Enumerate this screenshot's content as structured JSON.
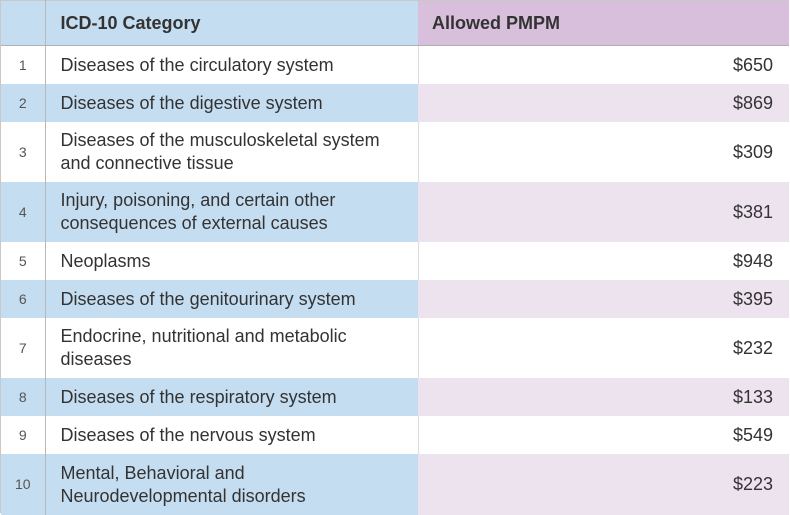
{
  "table": {
    "headers": {
      "index": "",
      "category": "ICD-10 Category",
      "value": "Allowed PMPM"
    },
    "rows": [
      {
        "index": "1",
        "category": "Diseases of the circulatory system",
        "value": "$650"
      },
      {
        "index": "2",
        "category": "Diseases of the digestive system",
        "value": "$869"
      },
      {
        "index": "3",
        "category": "Diseases of the musculoskeletal system and connective tissue",
        "value": "$309"
      },
      {
        "index": "4",
        "category": "Injury, poisoning, and certain other consequences of external causes",
        "value": "$381"
      },
      {
        "index": "5",
        "category": "Neoplasms",
        "value": "$948"
      },
      {
        "index": "6",
        "category": "Diseases of the genitourinary system",
        "value": "$395"
      },
      {
        "index": "7",
        "category": "Endocrine, nutritional and metabolic diseases",
        "value": "$232"
      },
      {
        "index": "8",
        "category": "Diseases of the respiratory system",
        "value": "$133"
      },
      {
        "index": "9",
        "category": "Diseases of the nervous system",
        "value": "$549"
      },
      {
        "index": "10",
        "category": "Mental, Behavioral and Neurodevelopmental disorders",
        "value": "$223"
      }
    ],
    "colors": {
      "header_category_bg": "#c5ddf0",
      "header_value_bg": "#d8bfdc",
      "band_category_bg": "#c5ddf0",
      "band_value_bg": "#ede3ef"
    }
  }
}
